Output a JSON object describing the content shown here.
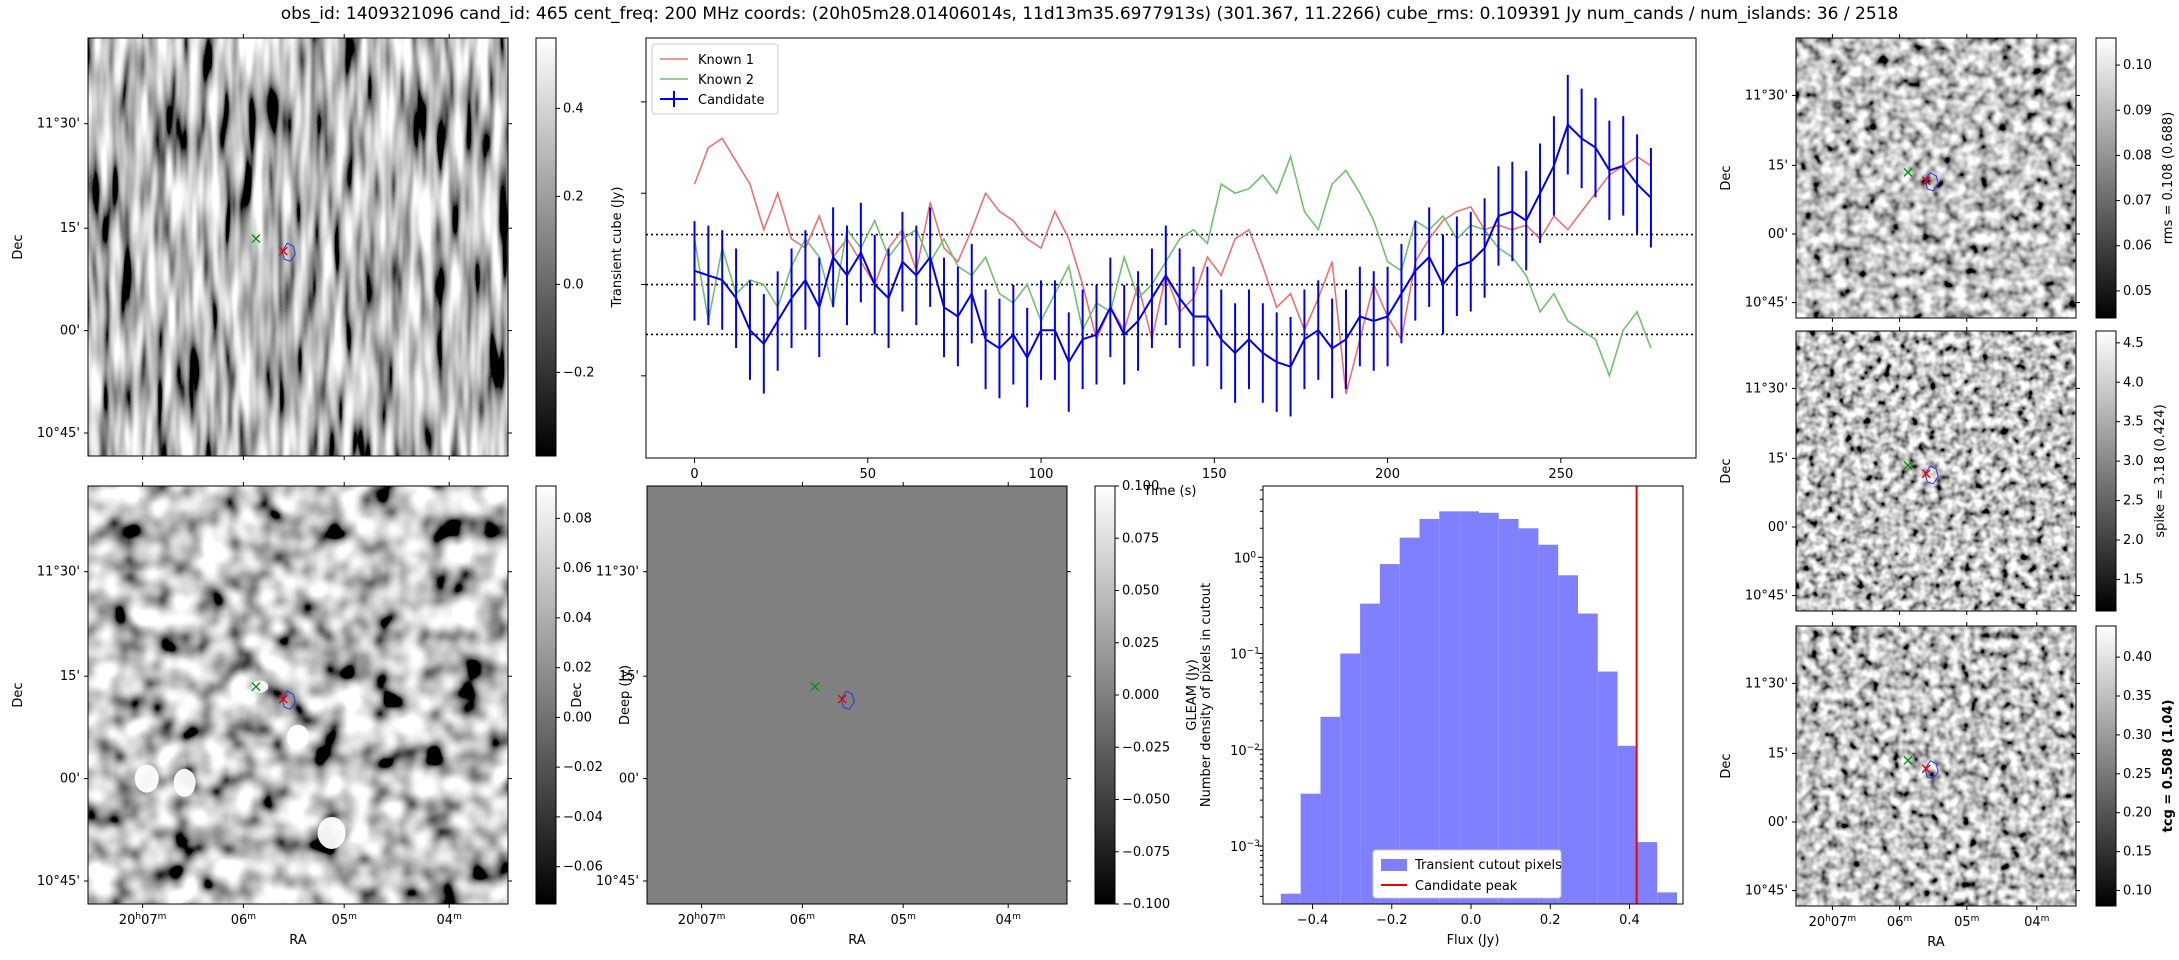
{
  "suptitle": "obs_id: 1409321096 cand_id: 465 cent_freq: 200 MHz coords: (20h05m28.01406014s, 11d13m35.6977913s) (301.367, 11.2266) cube_rms: 0.109391 Jy num_cands / num_islands: 36 / 2518",
  "colors": {
    "known1": "#f07070",
    "known2": "#70c070",
    "candidate": "#0000ee",
    "hist_fill": "#8080ff",
    "peak": "#ee0000"
  },
  "sky_axes": {
    "ra_label": "RA",
    "dec_label": "Dec",
    "ra_ticks": [
      "20h07m",
      "06m",
      "05m",
      "04m"
    ],
    "dec_ticks": [
      "11°30'",
      "15'",
      "00'",
      "10°45'"
    ]
  },
  "panels": {
    "transient": {
      "cbar_label": "Transient cube (Jy)",
      "cbar_ticks": [
        "0.4",
        "0.2",
        "0.0",
        "−0.2"
      ],
      "cbar_tick_values": [
        0.4,
        0.2,
        0.0,
        -0.2
      ],
      "cbar_range": [
        -0.39,
        0.56
      ]
    },
    "deep": {
      "cbar_label": "Deep (Jy)",
      "cbar_ticks": [
        "0.08",
        "0.06",
        "0.04",
        "0.02",
        "0.00",
        "−0.02",
        "−0.04",
        "−0.06"
      ],
      "cbar_tick_values": [
        0.08,
        0.06,
        0.04,
        0.02,
        0.0,
        -0.02,
        -0.04,
        -0.06
      ],
      "cbar_range": [
        -0.075,
        0.093
      ]
    },
    "gleam": {
      "cbar_label": "GLEAM (Jy)",
      "cbar_ticks": [
        "0.100",
        "0.075",
        "0.050",
        "0.025",
        "0.000",
        "−0.025",
        "−0.050",
        "−0.075",
        "−0.100"
      ],
      "cbar_tick_values": [
        0.1,
        0.075,
        0.05,
        0.025,
        0.0,
        -0.025,
        -0.05,
        -0.075,
        -0.1
      ],
      "cbar_range": [
        -0.1,
        0.1
      ]
    },
    "rms": {
      "cbar_label": "rms = 0.108 (0.688)",
      "cbar_ticks": [
        "0.10",
        "0.09",
        "0.08",
        "0.07",
        "0.06",
        "0.05"
      ],
      "cbar_tick_values": [
        0.1,
        0.09,
        0.08,
        0.07,
        0.06,
        0.05
      ],
      "cbar_range": [
        0.044,
        0.106
      ]
    },
    "spike": {
      "cbar_label": "spike = 3.18 (0.424)",
      "cbar_ticks": [
        "4.5",
        "4.0",
        "3.5",
        "3.0",
        "2.5",
        "2.0",
        "1.5"
      ],
      "cbar_tick_values": [
        4.5,
        4.0,
        3.5,
        3.0,
        2.5,
        2.0,
        1.5
      ],
      "cbar_range": [
        1.1,
        4.65
      ]
    },
    "tcg": {
      "cbar_label": "tcg = 0.508 (1.04)",
      "cbar_ticks": [
        "0.40",
        "0.35",
        "0.30",
        "0.25",
        "0.20",
        "0.15",
        "0.10"
      ],
      "cbar_tick_values": [
        0.4,
        0.35,
        0.3,
        0.25,
        0.2,
        0.15,
        0.1
      ],
      "cbar_range": [
        0.08,
        0.44
      ]
    }
  },
  "chart_data": [
    {
      "type": "line",
      "xlabel": "Time (s)",
      "ylabel": "",
      "xlim": [
        -14,
        289
      ],
      "ylim": [
        -0.38,
        0.54
      ],
      "xticks": [
        0,
        50,
        100,
        150,
        200,
        250
      ],
      "hlines": [
        0.1094,
        0.0,
        -0.1094
      ],
      "legend": {
        "position": "top-left",
        "entries": [
          "Known 1",
          "Known 2",
          "Candidate"
        ]
      },
      "series": [
        {
          "name": "Known 1",
          "x": [
            0,
            4,
            8,
            12,
            16,
            20,
            24,
            28,
            32,
            36,
            40,
            44,
            48,
            52,
            56,
            60,
            64,
            68,
            72,
            76,
            80,
            84,
            88,
            92,
            96,
            100,
            104,
            108,
            112,
            116,
            120,
            124,
            128,
            132,
            136,
            140,
            144,
            148,
            152,
            156,
            160,
            164,
            168,
            172,
            176,
            180,
            184,
            188,
            192,
            196,
            200,
            204,
            208,
            212,
            216,
            220,
            224,
            228,
            232,
            236,
            240,
            244,
            248,
            252,
            256,
            260,
            264,
            268,
            272,
            276
          ],
          "y": [
            0.22,
            0.3,
            0.32,
            0.27,
            0.22,
            0.12,
            0.2,
            0.1,
            0.08,
            0.15,
            0.06,
            0.1,
            0.05,
            0.0,
            0.08,
            0.12,
            0.03,
            0.18,
            0.08,
            0.05,
            0.12,
            0.2,
            0.16,
            0.14,
            0.1,
            0.08,
            0.16,
            0.1,
            0.0,
            -0.12,
            -0.05,
            -0.1,
            0.0,
            -0.12,
            0.02,
            -0.06,
            -0.03,
            0.06,
            0.02,
            0.1,
            0.12,
            0.04,
            -0.05,
            -0.02,
            -0.1,
            -0.03,
            0.05,
            -0.24,
            -0.12,
            0.0,
            -0.07,
            -0.12,
            0.05,
            0.1,
            0.14,
            0.16,
            0.17,
            0.12,
            0.13,
            0.12,
            0.13,
            0.1,
            0.15,
            0.12,
            0.16,
            0.2,
            0.24,
            0.26,
            0.28,
            0.26
          ]
        },
        {
          "name": "Known 2",
          "x": [
            0,
            4,
            8,
            12,
            16,
            20,
            24,
            28,
            32,
            36,
            40,
            44,
            48,
            52,
            56,
            60,
            64,
            68,
            72,
            76,
            80,
            84,
            88,
            92,
            96,
            100,
            104,
            108,
            112,
            116,
            120,
            124,
            128,
            132,
            136,
            140,
            144,
            148,
            152,
            156,
            160,
            164,
            168,
            172,
            176,
            180,
            184,
            188,
            192,
            196,
            200,
            204,
            208,
            212,
            216,
            220,
            224,
            228,
            232,
            236,
            240,
            244,
            248,
            252,
            256,
            260,
            264,
            268,
            272,
            276
          ],
          "y": [
            0.1,
            -0.08,
            0.08,
            -0.02,
            0.01,
            0.0,
            -0.05,
            0.04,
            0.1,
            0.06,
            -0.05,
            0.12,
            0.08,
            0.14,
            0.06,
            0.1,
            0.12,
            0.05,
            0.1,
            0.04,
            0.02,
            0.06,
            -0.02,
            -0.04,
            0.0,
            -0.08,
            -0.02,
            0.04,
            -0.1,
            -0.04,
            -0.06,
            0.06,
            -0.03,
            0.0,
            0.05,
            0.1,
            0.12,
            0.09,
            0.22,
            0.2,
            0.21,
            0.24,
            0.2,
            0.28,
            0.16,
            0.12,
            0.22,
            0.25,
            0.2,
            0.14,
            0.05,
            0.03,
            0.14,
            0.12,
            0.15,
            0.1,
            0.13,
            0.12,
            0.08,
            0.06,
            0.02,
            -0.06,
            -0.02,
            -0.08,
            -0.1,
            -0.12,
            -0.2,
            -0.1,
            -0.06,
            -0.14
          ]
        },
        {
          "name": "Candidate",
          "x": [
            0,
            4,
            8,
            12,
            16,
            20,
            24,
            28,
            32,
            36,
            40,
            44,
            48,
            52,
            56,
            60,
            64,
            68,
            72,
            76,
            80,
            84,
            88,
            92,
            96,
            100,
            104,
            108,
            112,
            116,
            120,
            124,
            128,
            132,
            136,
            140,
            144,
            148,
            152,
            156,
            160,
            164,
            168,
            172,
            176,
            180,
            184,
            188,
            192,
            196,
            200,
            204,
            208,
            212,
            216,
            220,
            224,
            228,
            232,
            236,
            240,
            244,
            248,
            252,
            256,
            260,
            264,
            268,
            272,
            276
          ],
          "y": [
            0.03,
            0.02,
            0.01,
            -0.03,
            -0.1,
            -0.13,
            -0.08,
            -0.03,
            0.01,
            -0.05,
            0.06,
            0.02,
            0.07,
            0.0,
            -0.03,
            0.05,
            0.02,
            0.06,
            -0.05,
            -0.07,
            -0.02,
            -0.12,
            -0.14,
            -0.11,
            -0.16,
            -0.1,
            -0.1,
            -0.17,
            -0.12,
            -0.11,
            -0.05,
            -0.11,
            -0.08,
            -0.03,
            0.02,
            -0.03,
            -0.07,
            -0.07,
            -0.12,
            -0.15,
            -0.12,
            -0.15,
            -0.17,
            -0.18,
            -0.12,
            -0.1,
            -0.14,
            -0.12,
            -0.07,
            -0.08,
            -0.07,
            -0.02,
            0.03,
            0.06,
            0.0,
            0.04,
            0.05,
            0.08,
            0.15,
            0.16,
            0.14,
            0.2,
            0.26,
            0.35,
            0.32,
            0.3,
            0.25,
            0.26,
            0.22,
            0.19
          ],
          "err": 0.109
        }
      ]
    },
    {
      "type": "bar",
      "xlabel": "Flux (Jy)",
      "ylabel": "Number density of pixels in cutout",
      "yscale": "log",
      "xlim": [
        -0.525,
        0.535
      ],
      "ylim": [
        0.00025,
        5.5
      ],
      "xticks": [
        -0.4,
        -0.2,
        0.0,
        0.2,
        0.4
      ],
      "yticks": [
        "10⁰",
        "10⁻¹",
        "10⁻²",
        "10⁻³"
      ],
      "ytick_values": [
        1,
        0.1,
        0.01,
        0.001
      ],
      "legend": {
        "position": "bottom-center",
        "entries": [
          "Transient cutout pixels",
          "Candidate peak"
        ]
      },
      "bin_edges": [
        -0.48,
        -0.43,
        -0.38,
        -0.33,
        -0.28,
        -0.23,
        -0.18,
        -0.13,
        -0.08,
        -0.03,
        0.02,
        0.07,
        0.12,
        0.17,
        0.22,
        0.27,
        0.32,
        0.37,
        0.42,
        0.47,
        0.52
      ],
      "density": [
        0.00032,
        0.0035,
        0.022,
        0.1,
        0.33,
        0.85,
        1.6,
        2.5,
        3.0,
        3.0,
        2.9,
        2.5,
        2.0,
        1.35,
        0.65,
        0.26,
        0.065,
        0.011,
        0.0011,
        0.00033
      ],
      "candidate_peak": 0.418
    }
  ]
}
